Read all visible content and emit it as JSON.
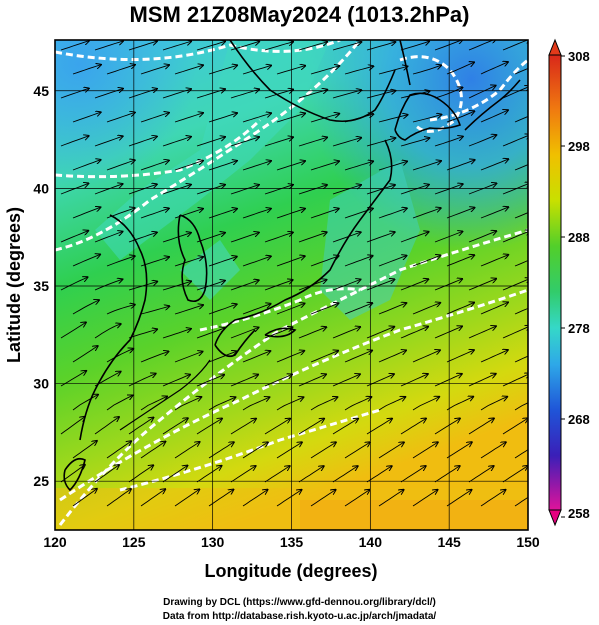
{
  "title": "MSM 21Z08May2024 (1013.2hPa)",
  "map": {
    "xlabel": "Longitude (degrees)",
    "ylabel": "Latitude  (degrees)",
    "lon_range": [
      120,
      150
    ],
    "lat_range": [
      22.5,
      47.6
    ],
    "lon_ticks": [
      "120",
      "125",
      "130",
      "135",
      "140",
      "145",
      "150"
    ],
    "lat_ticks": [
      "25",
      "30",
      "35",
      "40",
      "45"
    ],
    "field": "temperature (K) with wind streamlines",
    "contour_color": "#ffffff",
    "coastline_color": "#000000",
    "grid": true
  },
  "colorbar": {
    "labels": [
      "308",
      "298",
      "288",
      "278",
      "268",
      "258"
    ],
    "range": [
      258,
      308
    ],
    "colors": [
      "#e5007f",
      "#8f1fbf",
      "#1b2fc8",
      "#1f7fe8",
      "#2fbfe0",
      "#3fdf9f",
      "#36c832",
      "#7fd61f",
      "#d8e000",
      "#f0b400",
      "#f07a10",
      "#e23a1a"
    ]
  },
  "credits": {
    "line1": "Drawing by DCL (https://www.gfd-dennou.org/library/dcl/)",
    "line2": "Data from http://database.rish.kyoto-u.ac.jp/arch/jmadata/"
  }
}
